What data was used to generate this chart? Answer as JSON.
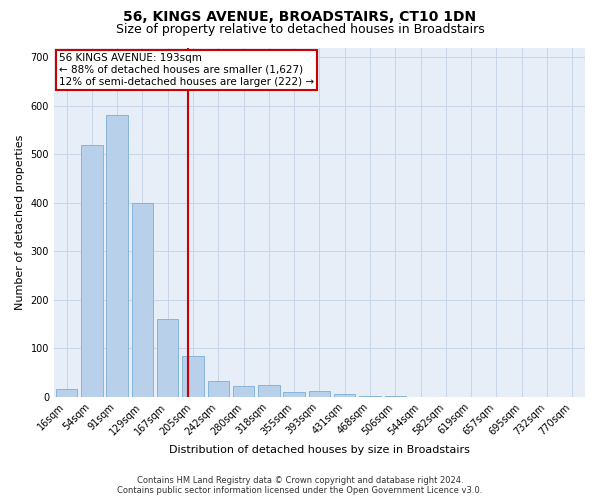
{
  "title": "56, KINGS AVENUE, BROADSTAIRS, CT10 1DN",
  "subtitle": "Size of property relative to detached houses in Broadstairs",
  "xlabel": "Distribution of detached houses by size in Broadstairs",
  "ylabel": "Number of detached properties",
  "footer_line1": "Contains HM Land Registry data © Crown copyright and database right 2024.",
  "footer_line2": "Contains public sector information licensed under the Open Government Licence v3.0.",
  "bin_labels": [
    "16sqm",
    "54sqm",
    "91sqm",
    "129sqm",
    "167sqm",
    "205sqm",
    "242sqm",
    "280sqm",
    "318sqm",
    "355sqm",
    "393sqm",
    "431sqm",
    "468sqm",
    "506sqm",
    "544sqm",
    "582sqm",
    "619sqm",
    "657sqm",
    "695sqm",
    "732sqm",
    "770sqm"
  ],
  "bar_values": [
    16,
    520,
    580,
    400,
    160,
    85,
    33,
    22,
    25,
    10,
    12,
    5,
    2,
    1,
    0,
    0,
    0,
    0,
    0,
    0,
    0
  ],
  "bar_color": "#b8d0ea",
  "bar_edge_color": "#7aafd4",
  "grid_color": "#c8d4e8",
  "background_color": "#e8eef8",
  "vline_color": "#cc0000",
  "vline_x": 4.82,
  "annotation_text_line1": "56 KINGS AVENUE: 193sqm",
  "annotation_text_line2": "← 88% of detached houses are smaller (1,627)",
  "annotation_text_line3": "12% of semi-detached houses are larger (222) →",
  "ylim": [
    0,
    720
  ],
  "yticks": [
    0,
    100,
    200,
    300,
    400,
    500,
    600,
    700
  ],
  "title_fontsize": 10,
  "subtitle_fontsize": 9,
  "ylabel_fontsize": 8,
  "xlabel_fontsize": 8,
  "tick_fontsize": 7,
  "annotation_fontsize": 7.5,
  "footer_fontsize": 6
}
